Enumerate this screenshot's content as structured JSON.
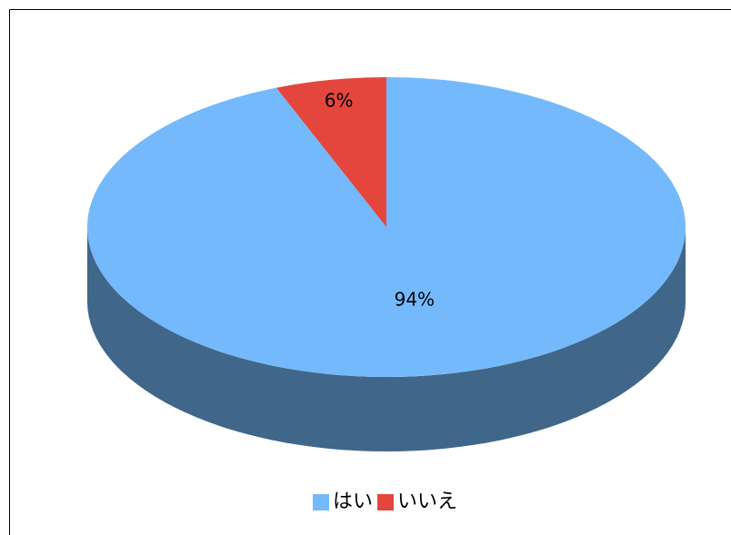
{
  "chart_data": {
    "type": "pie",
    "categories": [
      "はい",
      "いいえ"
    ],
    "values": [
      94,
      6
    ],
    "value_labels": [
      "94%",
      "6%"
    ],
    "colors": [
      "#74b9fb",
      "#e4463e"
    ],
    "legend": "bottom",
    "three_d": true
  }
}
